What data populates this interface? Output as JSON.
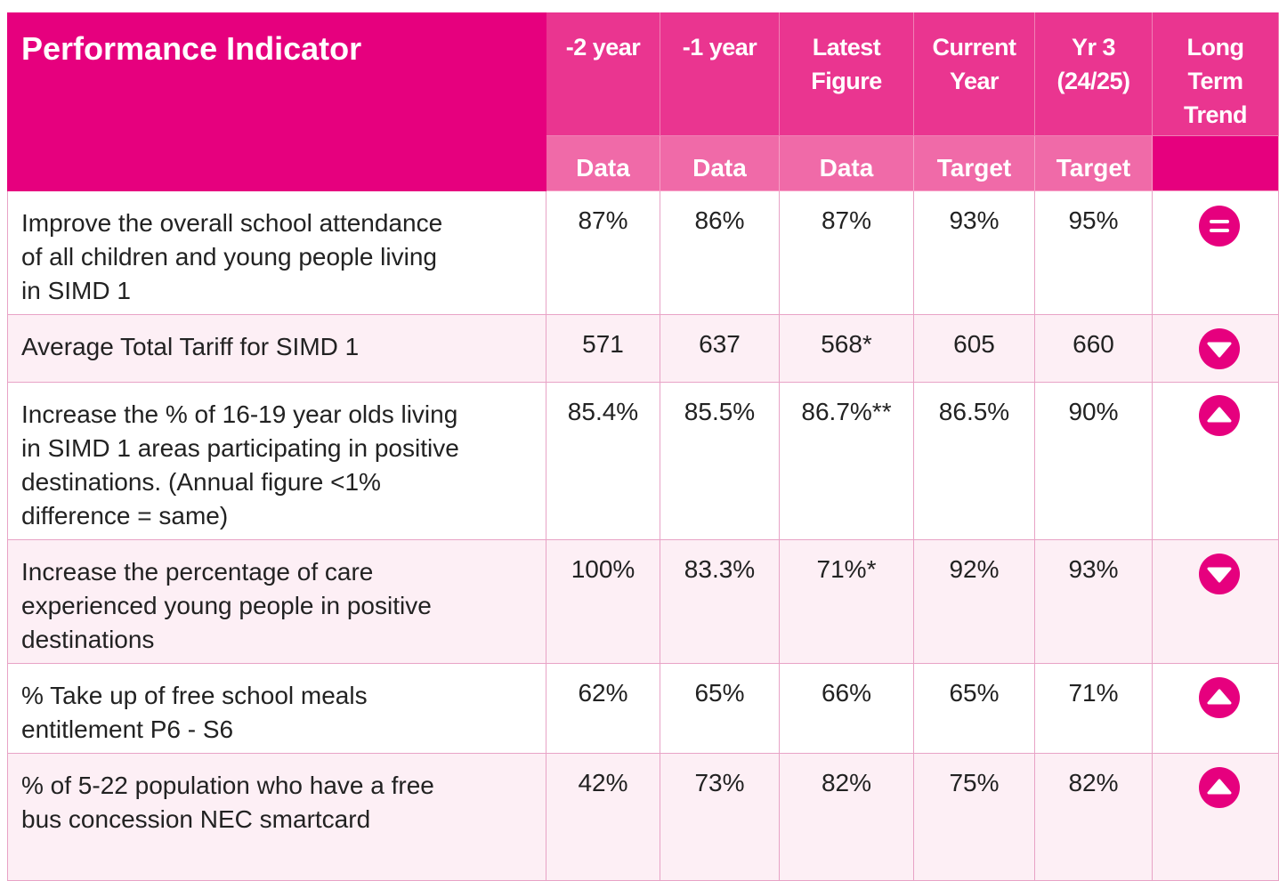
{
  "header": {
    "title": "Performance Indicator",
    "columns": [
      [
        "-2 year"
      ],
      [
        "-1 year"
      ],
      [
        "Latest",
        "Figure"
      ],
      [
        "Current",
        "Year"
      ],
      [
        "Yr 3",
        "(24/25)"
      ],
      [
        "Long",
        "Term",
        "Trend"
      ]
    ],
    "subheaders": [
      "Data",
      "Data",
      "Data",
      "Target",
      "Target"
    ]
  },
  "table": {
    "rows": [
      {
        "indicator": [
          "Improve the overall school attendance",
          "of all children and young people living",
          "in SIMD 1"
        ],
        "values": [
          "87%",
          "86%",
          "87%",
          "93%",
          "95%"
        ]
      },
      {
        "indicator": [
          "Average Total Tariff for SIMD 1"
        ],
        "values": [
          "571",
          "637",
          "568*",
          "605",
          "660"
        ]
      },
      {
        "indicator": [
          "Increase the % of 16-19 year olds living",
          "in SIMD 1 areas participating in positive",
          "destinations. (Annual figure <1%",
          "difference = same)"
        ],
        "values": [
          "85.4%",
          "85.5%",
          "86.7%**",
          "86.5%",
          "90%"
        ]
      },
      {
        "indicator": [
          "Increase the percentage of care",
          "experienced young people in positive",
          "destinations"
        ],
        "values": [
          "100%",
          "83.3%",
          "71%*",
          "92%",
          "93%"
        ]
      },
      {
        "indicator": [
          "% Take up of free school meals",
          "entitlement P6 - S6"
        ],
        "values": [
          "62%",
          "65%",
          "66%",
          "65%",
          "71%"
        ]
      },
      {
        "indicator": [
          "% of 5-22 population who have a free",
          "bus concession NEC smartcard"
        ],
        "values": [
          "42%",
          "73%",
          "82%",
          "75%",
          "82%"
        ]
      }
    ]
  }
}
